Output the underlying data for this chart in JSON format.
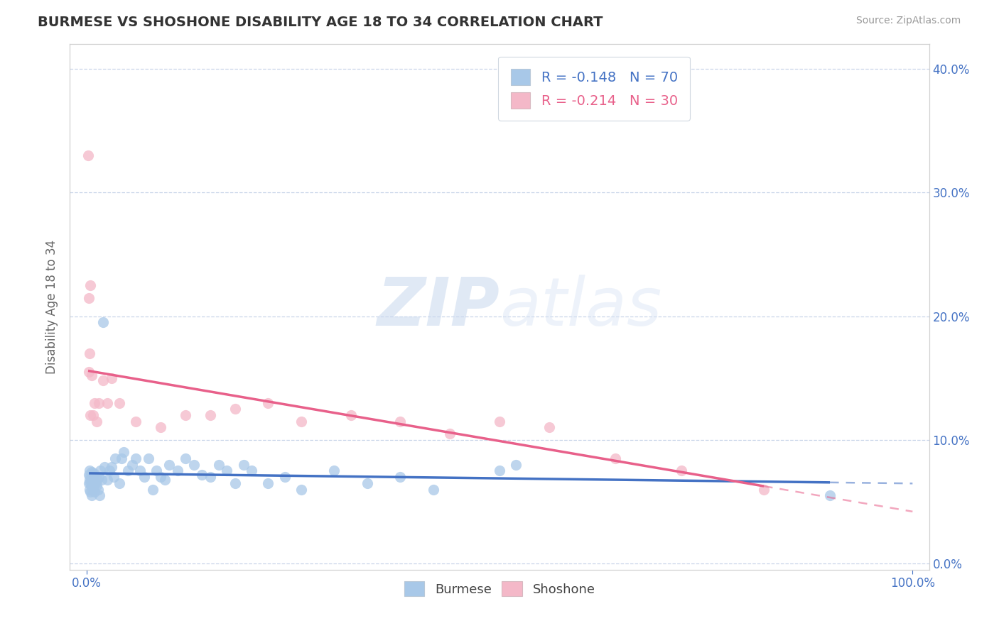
{
  "title": "BURMESE VS SHOSHONE DISABILITY AGE 18 TO 34 CORRELATION CHART",
  "source_text": "Source: ZipAtlas.com",
  "ylabel": "Disability Age 18 to 34",
  "legend_burmese": "Burmese",
  "legend_shoshone": "Shoshone",
  "burmese_R": -0.148,
  "burmese_N": 70,
  "shoshone_R": -0.214,
  "shoshone_N": 30,
  "xlim": [
    -0.02,
    1.02
  ],
  "ylim": [
    -0.005,
    0.42
  ],
  "xtick_positions": [
    0.0,
    1.0
  ],
  "xticklabels": [
    "0.0%",
    "100.0%"
  ],
  "ytick_positions": [
    0.0,
    0.1,
    0.2,
    0.3,
    0.4
  ],
  "yticklabels_right": [
    "0.0%",
    "10.0%",
    "20.0%",
    "30.0%",
    "40.0%"
  ],
  "burmese_color": "#a8c8e8",
  "shoshone_color": "#f4b8c8",
  "burmese_line_color": "#4472c4",
  "shoshone_line_color": "#e8608a",
  "burmese_line_dash_color": "#6090c8",
  "shoshone_line_dash_color": "#c8a0b0",
  "background_color": "#ffffff",
  "grid_color": "#c8d4e8",
  "watermark_zip": "ZIP",
  "watermark_atlas": "atlas",
  "burmese_x": [
    0.003,
    0.003,
    0.004,
    0.004,
    0.004,
    0.005,
    0.005,
    0.005,
    0.006,
    0.006,
    0.006,
    0.006,
    0.007,
    0.007,
    0.007,
    0.008,
    0.008,
    0.009,
    0.009,
    0.01,
    0.01,
    0.011,
    0.012,
    0.013,
    0.014,
    0.015,
    0.016,
    0.017,
    0.018,
    0.02,
    0.022,
    0.025,
    0.028,
    0.03,
    0.033,
    0.035,
    0.04,
    0.042,
    0.045,
    0.05,
    0.055,
    0.06,
    0.065,
    0.07,
    0.075,
    0.08,
    0.085,
    0.09,
    0.095,
    0.1,
    0.11,
    0.12,
    0.13,
    0.14,
    0.15,
    0.16,
    0.17,
    0.18,
    0.19,
    0.2,
    0.22,
    0.24,
    0.26,
    0.3,
    0.34,
    0.38,
    0.42,
    0.5,
    0.52,
    0.9
  ],
  "burmese_y": [
    0.065,
    0.072,
    0.06,
    0.068,
    0.075,
    0.058,
    0.065,
    0.071,
    0.055,
    0.063,
    0.068,
    0.074,
    0.06,
    0.067,
    0.073,
    0.062,
    0.07,
    0.064,
    0.073,
    0.058,
    0.066,
    0.065,
    0.063,
    0.068,
    0.06,
    0.07,
    0.055,
    0.075,
    0.068,
    0.195,
    0.078,
    0.068,
    0.075,
    0.078,
    0.07,
    0.085,
    0.065,
    0.085,
    0.09,
    0.075,
    0.08,
    0.085,
    0.075,
    0.07,
    0.085,
    0.06,
    0.075,
    0.07,
    0.068,
    0.08,
    0.075,
    0.085,
    0.08,
    0.072,
    0.07,
    0.08,
    0.075,
    0.065,
    0.08,
    0.075,
    0.065,
    0.07,
    0.06,
    0.075,
    0.065,
    0.07,
    0.06,
    0.075,
    0.08,
    0.055
  ],
  "shoshone_x": [
    0.002,
    0.003,
    0.003,
    0.004,
    0.005,
    0.005,
    0.006,
    0.008,
    0.01,
    0.012,
    0.015,
    0.02,
    0.025,
    0.03,
    0.04,
    0.06,
    0.09,
    0.12,
    0.15,
    0.18,
    0.22,
    0.26,
    0.32,
    0.38,
    0.44,
    0.5,
    0.56,
    0.64,
    0.72,
    0.82
  ],
  "shoshone_y": [
    0.33,
    0.155,
    0.215,
    0.17,
    0.225,
    0.12,
    0.152,
    0.12,
    0.13,
    0.115,
    0.13,
    0.148,
    0.13,
    0.15,
    0.13,
    0.115,
    0.11,
    0.12,
    0.12,
    0.125,
    0.13,
    0.115,
    0.12,
    0.115,
    0.105,
    0.115,
    0.11,
    0.085,
    0.075,
    0.06
  ]
}
